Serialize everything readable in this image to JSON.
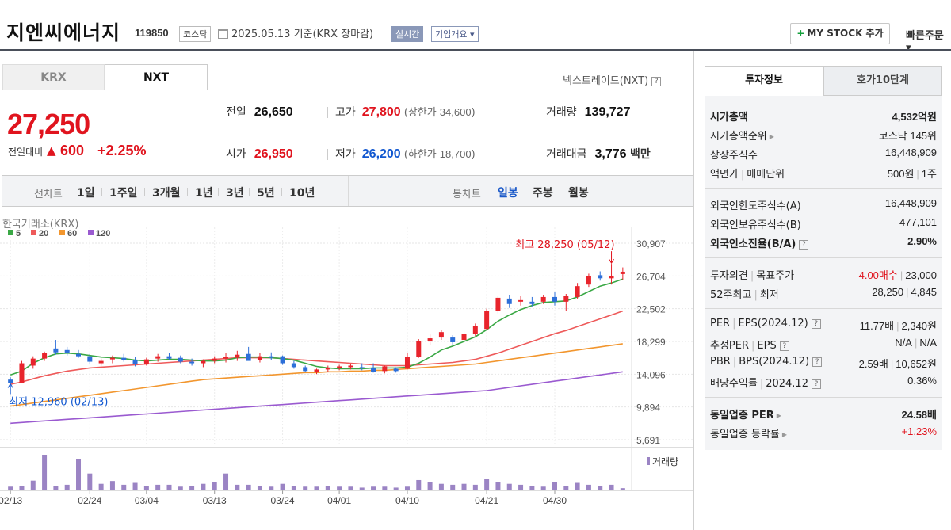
{
  "header": {
    "company_name": "지엔씨에너지",
    "code": "119850",
    "market": "코스닥",
    "date_text": "2025.05.13  기준(KRX 장마감)",
    "realtime_label": "실시간",
    "overview_label": "기업개요 ▾",
    "mystock_label": "MY STOCK 추가",
    "quick_order_label": "빠른주문 ▾"
  },
  "tabs": {
    "krx": "KRX",
    "nxt": "NXT",
    "nxt_link": "넥스트레이드(NXT)"
  },
  "price": {
    "current": "27,250",
    "change_label": "전일대비",
    "change_tri": "▲",
    "change": "600",
    "change_rate": "+2.25%"
  },
  "quote": {
    "prev_label": "전일",
    "prev": "26,650",
    "high_label": "고가",
    "high": "27,800",
    "upper_label": "(상한가",
    "upper": "34,600",
    "upper_close": ")",
    "volume_label": "거래량",
    "volume": "139,727",
    "open_label": "시가",
    "open": "26,950",
    "low_label": "저가",
    "low": "26,200",
    "lower_label": "(하한가",
    "lower": "18,700",
    "lower_close": ")",
    "amount_label": "거래대금",
    "amount": "3,776",
    "amount_unit": "백만"
  },
  "periods": {
    "line_label": "선차트",
    "line_items": [
      "1일",
      "1주일",
      "3개월",
      "1년",
      "3년",
      "5년",
      "10년"
    ],
    "candle_label": "봉차트",
    "candle_items": [
      "일봉",
      "주봉",
      "월봉"
    ]
  },
  "chart_data": {
    "type": "candlestick",
    "source_label": "한국거래소(KRX)",
    "legend": [
      {
        "name": "5",
        "color": "#3aa845"
      },
      {
        "name": "20",
        "color": "#ee5a5a"
      },
      {
        "name": "60",
        "color": "#f2962e"
      },
      {
        "name": "120",
        "color": "#9a5ad0"
      }
    ],
    "y_ticks": [
      "30,907",
      "26,704",
      "22,502",
      "18,299",
      "14,096",
      "9,894",
      "5,691"
    ],
    "ylim": [
      5691,
      30907
    ],
    "x_tick_labels": [
      "02/13",
      "02/24",
      "03/04",
      "03/13",
      "03/24",
      "04/01",
      "04/10",
      "04/21",
      "04/30"
    ],
    "x_tick_indices": [
      0,
      7,
      12,
      18,
      24,
      29,
      35,
      42,
      48
    ],
    "dates": [
      "02/13",
      "02/14",
      "02/17",
      "02/18",
      "02/19",
      "02/20",
      "02/21",
      "02/24",
      "02/25",
      "02/26",
      "02/27",
      "02/28",
      "03/04",
      "03/05",
      "03/06",
      "03/07",
      "03/10",
      "03/11",
      "03/13",
      "03/14",
      "03/17",
      "03/18",
      "03/19",
      "03/20",
      "03/24",
      "03/25",
      "03/26",
      "03/27",
      "03/28",
      "04/01",
      "04/02",
      "04/03",
      "04/04",
      "04/07",
      "04/08",
      "04/10",
      "04/11",
      "04/14",
      "04/15",
      "04/16",
      "04/17",
      "04/18",
      "04/21",
      "04/22",
      "04/23",
      "04/24",
      "04/25",
      "04/28",
      "04/30",
      "05/02",
      "05/07",
      "05/08",
      "05/09",
      "05/12",
      "05/13"
    ],
    "ohlc": [
      [
        13400,
        13700,
        12960,
        13000
      ],
      [
        13000,
        15800,
        12960,
        15500
      ],
      [
        15200,
        16400,
        14800,
        16100
      ],
      [
        16100,
        17000,
        15800,
        16800
      ],
      [
        17400,
        18500,
        16600,
        16900
      ],
      [
        17200,
        17600,
        16500,
        16800
      ],
      [
        16700,
        17200,
        16200,
        16400
      ],
      [
        16400,
        16700,
        15400,
        15700
      ],
      [
        15500,
        16100,
        15200,
        15800
      ],
      [
        16000,
        16500,
        15500,
        16200
      ],
      [
        16200,
        16700,
        15700,
        15900
      ],
      [
        15900,
        16300,
        15100,
        15400
      ],
      [
        15400,
        16200,
        15200,
        16000
      ],
      [
        16100,
        16700,
        15700,
        16400
      ],
      [
        16400,
        16800,
        15900,
        16100
      ],
      [
        16200,
        16500,
        15500,
        15700
      ],
      [
        15700,
        16100,
        15200,
        15500
      ],
      [
        15500,
        16000,
        15000,
        15800
      ],
      [
        15800,
        16400,
        15500,
        16100
      ],
      [
        16100,
        16800,
        15600,
        16300
      ],
      [
        16200,
        17100,
        15800,
        16600
      ],
      [
        16700,
        17600,
        16000,
        15800
      ],
      [
        15900,
        16800,
        15600,
        16400
      ],
      [
        16400,
        16900,
        15900,
        16200
      ],
      [
        16400,
        16500,
        15300,
        15500
      ],
      [
        15500,
        15800,
        14800,
        15000
      ],
      [
        15000,
        15200,
        14400,
        14500
      ],
      [
        14400,
        14800,
        14100,
        14700
      ],
      [
        14700,
        15200,
        14400,
        14900
      ],
      [
        14900,
        15300,
        14600,
        15100
      ],
      [
        15000,
        15400,
        14700,
        15200
      ],
      [
        15000,
        15500,
        14600,
        14900
      ],
      [
        14900,
        15500,
        14300,
        14400
      ],
      [
        14500,
        15200,
        14200,
        15100
      ],
      [
        14800,
        15000,
        14300,
        14500
      ],
      [
        14800,
        16800,
        14700,
        16300
      ],
      [
        16300,
        18600,
        16200,
        18300
      ],
      [
        18300,
        19200,
        17800,
        18700
      ],
      [
        18800,
        19800,
        18500,
        19500
      ],
      [
        18800,
        19100,
        17900,
        18200
      ],
      [
        18500,
        19600,
        18300,
        19300
      ],
      [
        19300,
        20600,
        19000,
        20300
      ],
      [
        19900,
        22500,
        19800,
        22200
      ],
      [
        22200,
        24200,
        21900,
        23900
      ],
      [
        23800,
        24300,
        22600,
        23100
      ],
      [
        23400,
        24100,
        22900,
        23600
      ],
      [
        23400,
        24000,
        22800,
        23100
      ],
      [
        23400,
        24300,
        23100,
        24000
      ],
      [
        24000,
        24600,
        22900,
        23400
      ],
      [
        23400,
        24400,
        22200,
        24100
      ],
      [
        24000,
        25800,
        23800,
        25400
      ],
      [
        25600,
        27000,
        25300,
        26700
      ],
      [
        26800,
        27300,
        26100,
        26400
      ],
      [
        26400,
        28250,
        25600,
        26650
      ],
      [
        26950,
        27800,
        26200,
        27250
      ]
    ],
    "ma5": [
      14000,
      14500,
      15500,
      16200,
      16700,
      16800,
      16700,
      16500,
      16300,
      16200,
      16100,
      15900,
      15800,
      15900,
      16000,
      16000,
      15900,
      15800,
      15800,
      15900,
      16200,
      16300,
      16300,
      16200,
      16100,
      15900,
      15500,
      15100,
      14900,
      14800,
      14800,
      14800,
      14900,
      14900,
      14900,
      15000,
      15500,
      16300,
      17200,
      17700,
      18300,
      18900,
      19800,
      20900,
      21700,
      22400,
      22900,
      23300,
      23400,
      23500,
      24000,
      24700,
      25400,
      25800,
      26300
    ],
    "ma20": [
      12800,
      13100,
      13500,
      13900,
      14200,
      14500,
      14700,
      14900,
      15000,
      15100,
      15200,
      15300,
      15400,
      15500,
      15600,
      15700,
      15800,
      15900,
      16000,
      16100,
      16200,
      16200,
      16200,
      16200,
      16100,
      16000,
      15900,
      15800,
      15700,
      15600,
      15500,
      15400,
      15300,
      15200,
      15200,
      15200,
      15300,
      15400,
      15500,
      15600,
      15800,
      16000,
      16400,
      16800,
      17300,
      17800,
      18300,
      18800,
      19300,
      19700,
      20200,
      20700,
      21200,
      21700,
      22200
    ],
    "ma60": [
      10000,
      10200,
      10400,
      10600,
      10800,
      11000,
      11200,
      11400,
      11600,
      11800,
      12000,
      12200,
      12400,
      12600,
      12800,
      13000,
      13200,
      13400,
      13500,
      13600,
      13700,
      13800,
      13900,
      14000,
      14100,
      14200,
      14300,
      14300,
      14400,
      14400,
      14500,
      14500,
      14600,
      14600,
      14700,
      14800,
      14900,
      15000,
      15100,
      15200,
      15300,
      15400,
      15600,
      15800,
      16000,
      16200,
      16400,
      16600,
      16800,
      17000,
      17200,
      17400,
      17600,
      17800,
      18000
    ],
    "ma120": [
      7800,
      7900,
      8000,
      8100,
      8200,
      8300,
      8400,
      8500,
      8600,
      8700,
      8800,
      8900,
      9000,
      9100,
      9200,
      9300,
      9400,
      9500,
      9600,
      9700,
      9800,
      9900,
      10000,
      10100,
      10200,
      10300,
      10400,
      10500,
      10600,
      10700,
      10800,
      10900,
      11000,
      11100,
      11200,
      11300,
      11400,
      11500,
      11600,
      11700,
      11800,
      11900,
      12000,
      12200,
      12400,
      12600,
      12800,
      13000,
      13200,
      13400,
      13600,
      13800,
      14000,
      14200,
      14400
    ],
    "volume": [
      20,
      22,
      52,
      190,
      25,
      30,
      165,
      90,
      35,
      50,
      30,
      40,
      25,
      30,
      30,
      20,
      25,
      35,
      45,
      90,
      30,
      30,
      25,
      20,
      35,
      25,
      20,
      20,
      25,
      20,
      20,
      15,
      20,
      20,
      15,
      20,
      55,
      45,
      35,
      30,
      35,
      30,
      60,
      45,
      35,
      30,
      25,
      20,
      45,
      25,
      40,
      30,
      25,
      30,
      12
    ],
    "volume_label": "거래량",
    "high_annotation": "최고 28,250 (05/12)",
    "low_annotation": "최저 12,960 (02/13)"
  },
  "invest": {
    "tab_info": "투자정보",
    "tab_quote": "호가10단계",
    "rows1": [
      {
        "k": "시가총액",
        "v": "4,532억원",
        "bold": true
      },
      {
        "k": "시가총액순위",
        "v": "코스닥 145위",
        "arrow": true
      },
      {
        "k": "상장주식수",
        "v": "16,448,909"
      },
      {
        "k": "액면가",
        "k2": "매매단위",
        "v": "500원",
        "v2": "1주"
      }
    ],
    "rows2": [
      {
        "k": "외국인한도주식수(A)",
        "v": "16,448,909"
      },
      {
        "k": "외국인보유주식수(B)",
        "v": "477,101"
      },
      {
        "k": "외국인소진율(B/A)",
        "v": "2.90%",
        "bold": true,
        "help": true
      }
    ],
    "rows3": [
      {
        "k": "투자의견",
        "k2": "목표주가",
        "v": "4.00매수",
        "v2": "23,000",
        "v_red": true
      },
      {
        "k": "52주최고",
        "k2": "최저",
        "v": "28,250",
        "v2": "4,845"
      }
    ],
    "rows4": [
      {
        "k": "PER",
        "k2": "EPS(2024.12)",
        "v": "11.77배",
        "v2": "2,340원",
        "help": true
      },
      {
        "k": "추정PER",
        "k2": "EPS",
        "v": "N/A",
        "v2": "N/A",
        "help": true
      },
      {
        "k": "PBR",
        "k2": "BPS(2024.12)",
        "v": "2.59배",
        "v2": "10,652원",
        "help": true
      },
      {
        "k": "배당수익률",
        "k2": "2024.12",
        "v": "0.36%",
        "help": true
      }
    ],
    "rows5": [
      {
        "k": "동일업종 PER",
        "v": "24.58배",
        "bold": true,
        "arrow": true
      },
      {
        "k": "동일업종 등락률",
        "v": "+1.23%",
        "v_red": true,
        "arrow": true
      }
    ]
  }
}
